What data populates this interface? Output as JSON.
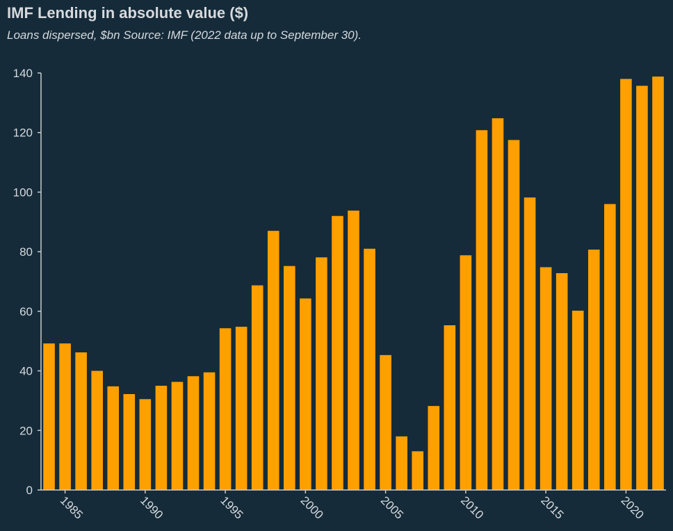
{
  "chart_data": {
    "type": "bar",
    "title": "IMF Lending in absolute value ($)",
    "subtitle": "Loans dispersed, $bn Source: IMF (2022 data up to September 30).",
    "xlabel": "",
    "ylabel": "",
    "ylim": [
      0,
      140
    ],
    "y_ticks": [
      0,
      20,
      40,
      60,
      80,
      100,
      120,
      140
    ],
    "x_ticks": [
      1985,
      1990,
      1995,
      2000,
      2005,
      2010,
      2015,
      2020
    ],
    "categories": [
      1984,
      1985,
      1986,
      1987,
      1988,
      1989,
      1990,
      1991,
      1992,
      1993,
      1994,
      1995,
      1996,
      1997,
      1998,
      1999,
      2000,
      2001,
      2002,
      2003,
      2004,
      2005,
      2006,
      2007,
      2008,
      2009,
      2010,
      2011,
      2012,
      2013,
      2014,
      2015,
      2016,
      2017,
      2018,
      2019,
      2020,
      2021,
      2022
    ],
    "values": [
      49.2,
      49.2,
      46.2,
      40,
      34.8,
      32.2,
      30.5,
      35,
      36.3,
      38.2,
      39.5,
      54.3,
      54.8,
      68.7,
      87,
      75.2,
      64.3,
      78.1,
      92,
      93.8,
      81,
      45.3,
      18,
      13,
      28.2,
      55.3,
      78.8,
      120.8,
      124.8,
      117.5,
      98.2,
      74.8,
      72.8,
      60.2,
      80.7,
      96,
      138,
      135.7,
      138.8
    ],
    "colors": {
      "bar": "#ff9f00",
      "axis": "#c8ccd0",
      "background": "#152b39",
      "text": "#d6d9dd"
    }
  }
}
